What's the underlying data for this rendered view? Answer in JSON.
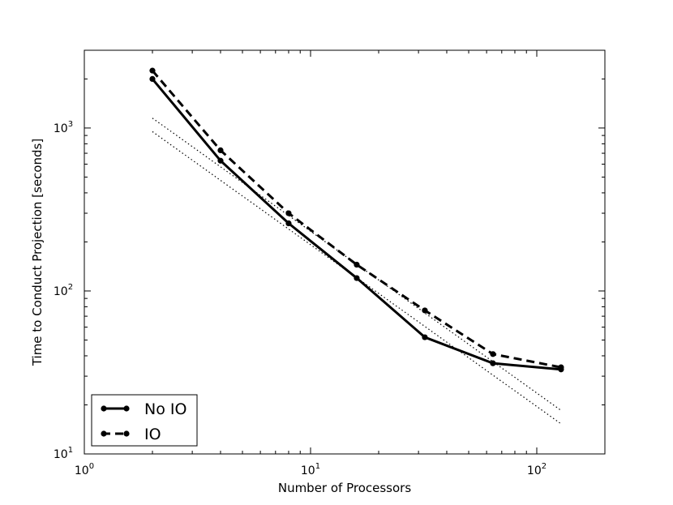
{
  "chart_data": {
    "type": "line",
    "title": "",
    "xlabel": "Number of Processors",
    "ylabel": "Time to Conduct Projection [seconds]",
    "xscale": "log",
    "yscale": "log",
    "xlim": [
      1,
      200
    ],
    "ylim": [
      10,
      3000
    ],
    "x_ticks": [
      {
        "base": "10",
        "exp": "0",
        "value": 1
      },
      {
        "base": "10",
        "exp": "1",
        "value": 10
      },
      {
        "base": "10",
        "exp": "2",
        "value": 100
      }
    ],
    "y_ticks": [
      {
        "base": "10",
        "exp": "1",
        "value": 10
      },
      {
        "base": "10",
        "exp": "2",
        "value": 100
      },
      {
        "base": "10",
        "exp": "3",
        "value": 1000
      }
    ],
    "grid": false,
    "legend_position": "lower-left",
    "series": [
      {
        "name": "No IO",
        "style": "solid",
        "color": "#000000",
        "x": [
          2,
          4,
          8,
          16,
          32,
          64,
          128
        ],
        "y": [
          2000,
          630,
          260,
          120,
          52,
          36,
          33
        ]
      },
      {
        "name": "IO",
        "style": "dashed",
        "color": "#000000",
        "x": [
          2,
          4,
          8,
          16,
          32,
          64,
          128
        ],
        "y": [
          2250,
          730,
          300,
          145,
          76,
          41,
          34
        ]
      }
    ],
    "reference_lines": [
      {
        "style": "dotted",
        "x": [
          2,
          128
        ],
        "y": [
          950,
          15.3
        ]
      },
      {
        "style": "dotted",
        "x": [
          2,
          128
        ],
        "y": [
          1150,
          18.5
        ]
      }
    ]
  }
}
